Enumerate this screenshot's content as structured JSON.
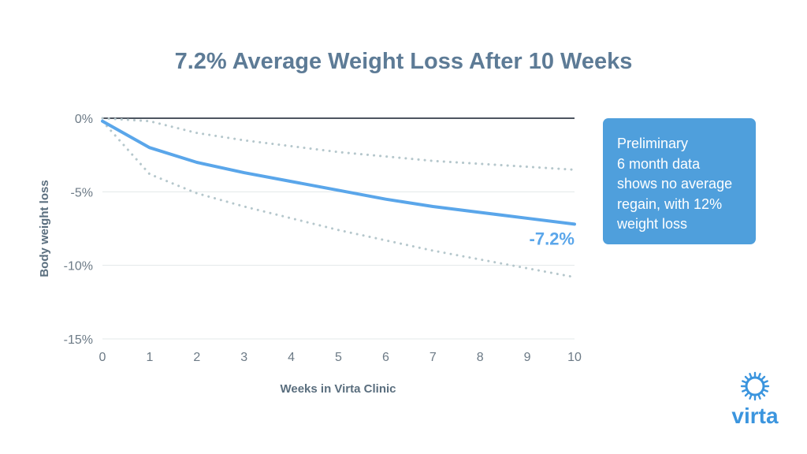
{
  "chart_data": {
    "type": "line",
    "title": "7.2% Average Weight Loss After 10 Weeks",
    "xlabel": "Weeks in Virta Clinic",
    "ylabel": "Body weight loss",
    "x": [
      0,
      1,
      2,
      3,
      4,
      5,
      6,
      7,
      8,
      9,
      10
    ],
    "xlim": [
      0,
      10
    ],
    "ylim": [
      -15,
      0
    ],
    "y_ticks": [
      0,
      -5,
      -10,
      -15
    ],
    "y_tick_labels": [
      "0%",
      "-5%",
      "-10%",
      "-15%"
    ],
    "x_tick_labels": [
      "0",
      "1",
      "2",
      "3",
      "4",
      "5",
      "6",
      "7",
      "8",
      "9",
      "10"
    ],
    "grid": "horizontal",
    "series": [
      {
        "role": "average",
        "style": "solid",
        "color": "#5aa6ea",
        "values": [
          -0.2,
          -2.0,
          -3.0,
          -3.7,
          -4.3,
          -4.9,
          -5.5,
          -6.0,
          -6.4,
          -6.8,
          -7.2
        ]
      },
      {
        "role": "upper-bound",
        "style": "dotted",
        "color": "#b5c7cc",
        "values": [
          0,
          -0.2,
          -1.0,
          -1.5,
          -1.9,
          -2.3,
          -2.6,
          -2.9,
          -3.1,
          -3.3,
          -3.5
        ]
      },
      {
        "role": "lower-bound",
        "style": "dotted",
        "color": "#b5c7cc",
        "values": [
          -0.2,
          -3.8,
          -5.1,
          -6.0,
          -6.8,
          -7.6,
          -8.3,
          -9.0,
          -9.6,
          -10.2,
          -10.8
        ]
      }
    ],
    "annotations": [
      {
        "text": "-7.2%",
        "x": 10,
        "y": -7.2,
        "color": "#5aa6ea"
      }
    ]
  },
  "callout": {
    "lines": [
      "Preliminary",
      "6 month data",
      "shows no average",
      "regain, with 12%",
      "weight loss"
    ],
    "color": "#4f9fdc"
  },
  "logo": {
    "text": "virta",
    "icon": "sun-ring-icon",
    "color": "#3b95de"
  }
}
